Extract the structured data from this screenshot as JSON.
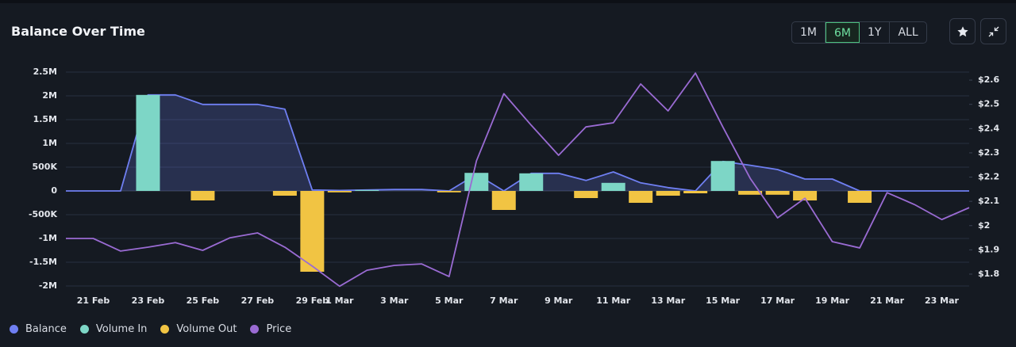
{
  "chart_data": {
    "type": "combo",
    "title": "Balance Over Time",
    "ranges": [
      "1M",
      "6M",
      "1Y",
      "ALL"
    ],
    "active_range": "6M",
    "categories": [
      null,
      "21 Feb",
      null,
      "23 Feb",
      null,
      "25 Feb",
      null,
      "27 Feb",
      null,
      "29 Feb",
      "1 Mar",
      null,
      "3 Mar",
      null,
      "5 Mar",
      null,
      "7 Mar",
      null,
      "9 Mar",
      null,
      "11 Mar",
      null,
      "13 Mar",
      null,
      "15 Mar",
      null,
      "17 Mar",
      null,
      "19 Mar",
      null,
      "21 Mar",
      null,
      "23 Mar",
      null
    ],
    "series": [
      {
        "name": "Balance",
        "type": "area",
        "color": "#6f7ff2",
        "values": [
          0,
          0,
          0,
          2020000,
          2020000,
          1820000,
          1820000,
          1820000,
          1720000,
          20000,
          10000,
          20000,
          30000,
          30000,
          0,
          350000,
          0,
          370000,
          370000,
          220000,
          400000,
          170000,
          70000,
          0,
          620000,
          540000,
          450000,
          250000,
          250000,
          0,
          0,
          0,
          0,
          0
        ]
      },
      {
        "name": "Volume In",
        "type": "bar",
        "color": "#7dd6c6",
        "values": [
          null,
          null,
          null,
          2020000,
          null,
          null,
          null,
          null,
          null,
          null,
          null,
          20000,
          null,
          null,
          null,
          380000,
          null,
          370000,
          null,
          null,
          170000,
          null,
          null,
          null,
          630000,
          null,
          null,
          null,
          null,
          null,
          null,
          null,
          null,
          null
        ]
      },
      {
        "name": "Volume Out",
        "type": "bar",
        "color": "#f1c443",
        "values": [
          null,
          null,
          null,
          null,
          null,
          -200000,
          null,
          null,
          -100000,
          -1700000,
          -30000,
          null,
          null,
          null,
          -30000,
          null,
          -400000,
          null,
          null,
          -150000,
          null,
          -250000,
          -100000,
          -50000,
          null,
          -80000,
          -80000,
          -200000,
          null,
          -250000,
          null,
          null,
          null,
          null
        ]
      },
      {
        "name": "Price",
        "type": "line",
        "axis": "y2",
        "color": "#9a6bd3",
        "values": [
          1.947,
          1.947,
          1.895,
          1.911,
          1.93,
          1.898,
          1.95,
          1.97,
          1.911,
          1.833,
          1.75,
          1.816,
          1.836,
          1.842,
          1.79,
          2.267,
          2.544,
          2.414,
          2.29,
          2.407,
          2.424,
          2.584,
          2.473,
          2.629,
          2.407,
          2.195,
          2.032,
          2.113,
          1.934,
          1.908,
          2.136,
          2.087,
          2.025,
          2.074
        ]
      }
    ],
    "ylim": [
      -2000000,
      2500000
    ],
    "yticks": [
      {
        "value": 2500000,
        "label": "2.5M"
      },
      {
        "value": 2000000,
        "label": "2M"
      },
      {
        "value": 1500000,
        "label": "1.5M"
      },
      {
        "value": 1000000,
        "label": "1M"
      },
      {
        "value": 500000,
        "label": "500K"
      },
      0,
      {
        "value": -500000,
        "label": "-500K"
      },
      {
        "value": -1000000,
        "label": "-1M"
      },
      {
        "value": -1500000,
        "label": "-1.5M"
      },
      {
        "value": -2000000,
        "label": "-2M"
      }
    ],
    "y2lim": [
      1.751,
      2.633
    ],
    "y2ticks": [
      {
        "value": 2.6,
        "label": "$2.6"
      },
      {
        "value": 2.5,
        "label": "$2.5"
      },
      {
        "value": 2.4,
        "label": "$2.4"
      },
      {
        "value": 2.3,
        "label": "$2.3"
      },
      {
        "value": 2.2,
        "label": "$2.2"
      },
      {
        "value": 2.1,
        "label": "$2.1"
      },
      {
        "value": 2,
        "label": "$2"
      },
      {
        "value": 1.9,
        "label": "$1.9"
      },
      {
        "value": 1.8,
        "label": "$1.8"
      }
    ],
    "grid": true,
    "legend": "bottom-left"
  }
}
